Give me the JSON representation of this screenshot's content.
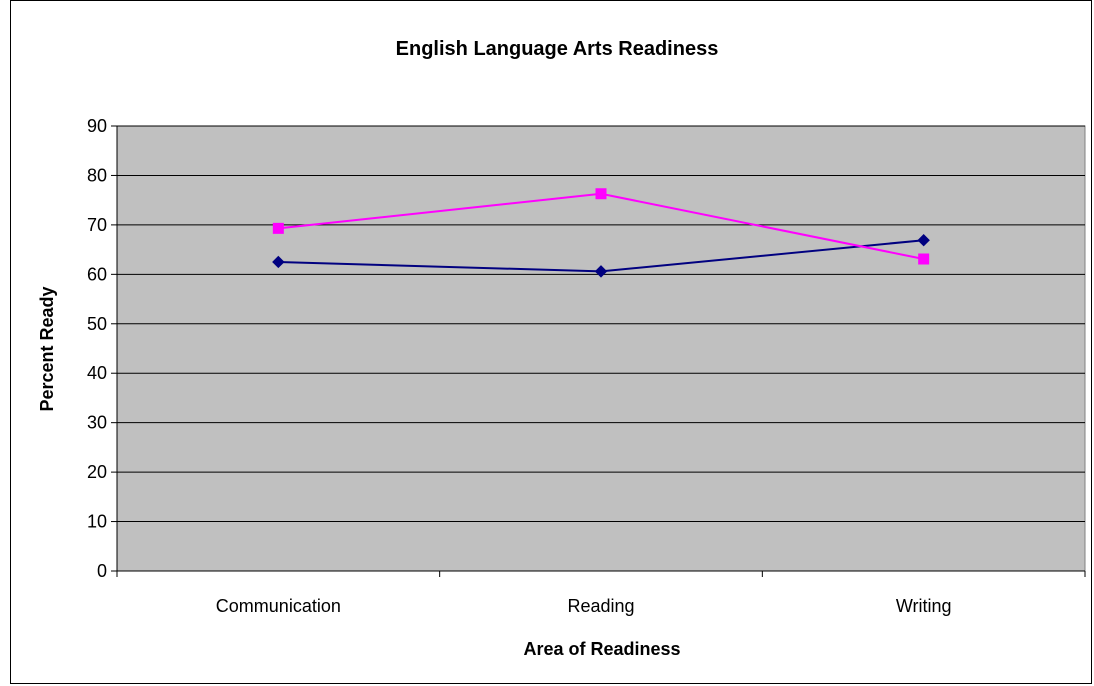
{
  "chart_data": {
    "type": "line",
    "title": "English Language Arts Readiness",
    "xlabel": "Area of Readiness",
    "ylabel": "Percent Ready",
    "categories": [
      "Communication",
      "Reading",
      "Writing"
    ],
    "ylim": [
      0,
      90
    ],
    "yticks": [
      0,
      10,
      20,
      30,
      40,
      50,
      60,
      70,
      80,
      90
    ],
    "grid": true,
    "legend": "none",
    "plot_background": "#C0C0C0",
    "series": [
      {
        "values": [
          62.5,
          60.6,
          66.9
        ],
        "color": "#000080",
        "marker": "diamond"
      },
      {
        "values": [
          69.3,
          76.3,
          63.1
        ],
        "color": "#FF00FF",
        "marker": "square"
      }
    ]
  }
}
